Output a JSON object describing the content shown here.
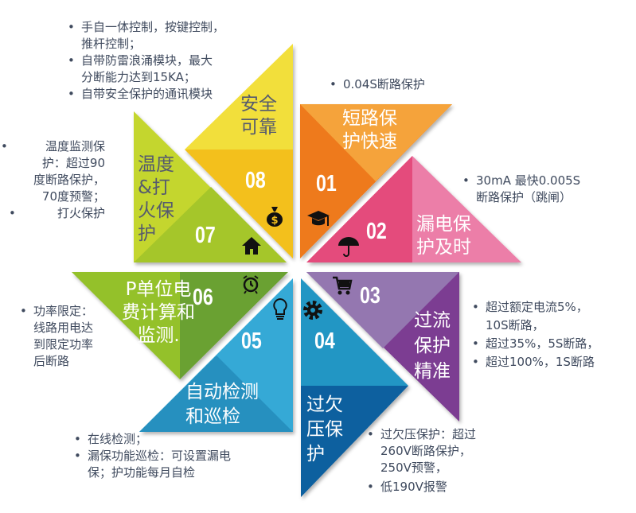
{
  "segments": [
    {
      "number": "01",
      "title": "短路保护快速",
      "title_lines": [
        "短路保",
        "护快速"
      ],
      "icon": "graduation-cap-icon",
      "colors": [
        "#f5a33a",
        "#ee7a1f"
      ],
      "bullets": [
        "0.04S断路保护"
      ]
    },
    {
      "number": "02",
      "title_lines": [
        "漏电保",
        "护及时"
      ],
      "icon": "umbrella-icon",
      "colors": [
        "#e44b7c",
        "#ec7ea8"
      ],
      "bullets": [
        [
          "30mA 最快0.005S",
          "断路保护（跳闸）"
        ]
      ]
    },
    {
      "number": "03",
      "title_lines": [
        "过流",
        "保护",
        "精准"
      ],
      "icon": "shopping-cart-icon",
      "colors": [
        "#9477b0",
        "#7b3c92"
      ],
      "bullets": [
        [
          "超过额定电流5%，",
          "10S断路，"
        ],
        "超过35%，5S断路，",
        "超过100%，1S断路"
      ]
    },
    {
      "number": "04",
      "title_lines": [
        "过欠",
        "压保",
        "护"
      ],
      "icon": "gear-icon",
      "colors": [
        "#2196c4",
        "#11609f"
      ],
      "bullets": [
        [
          "过欠压保护：超过",
          "260V断路保护，",
          "250V预警，"
        ],
        "低190V报警"
      ]
    },
    {
      "number": "05",
      "title_lines": [
        "自动检测",
        "和巡检"
      ],
      "icon": "lightbulb-icon",
      "colors": [
        "#35a9d6",
        "#2690bf"
      ],
      "bullets": [
        "在线检测；",
        [
          "漏保功能巡检：可设置漏电",
          "保；护功能每月自检"
        ]
      ]
    },
    {
      "number": "06",
      "title_lines": [
        "P单位电",
        "费计算和",
        "监测."
      ],
      "icon": "alarm-clock-icon",
      "colors": [
        "#94c12a",
        "#6aa131"
      ],
      "bullets": [
        [
          "功率限定：",
          "线路用电达",
          "到限定功率",
          "后断路"
        ]
      ]
    },
    {
      "number": "07",
      "title_lines": [
        "温度",
        "&打",
        "火保",
        "护"
      ],
      "icon": "house-icon",
      "colors": [
        "#c4d62f",
        "#a5c62a"
      ],
      "bullets": [
        [
          "温度监测保",
          "护：超过90",
          "度断路保护，",
          "70度预警；"
        ],
        "打火保护"
      ]
    },
    {
      "number": "08",
      "title_lines": [
        "安全",
        "可靠"
      ],
      "icon": "money-bag-icon",
      "colors": [
        "#f2df3a",
        "#f3c01c"
      ],
      "bullets": [
        [
          "手自一体控制，按键控制，",
          "推杆控制；"
        ],
        [
          "自带防雷浪涌模块，最大",
          "分断能力达到15KA；"
        ],
        "自带安全保护的通讯模块"
      ]
    }
  ],
  "bullet_char": "•",
  "text_color": "#3f4a5e"
}
